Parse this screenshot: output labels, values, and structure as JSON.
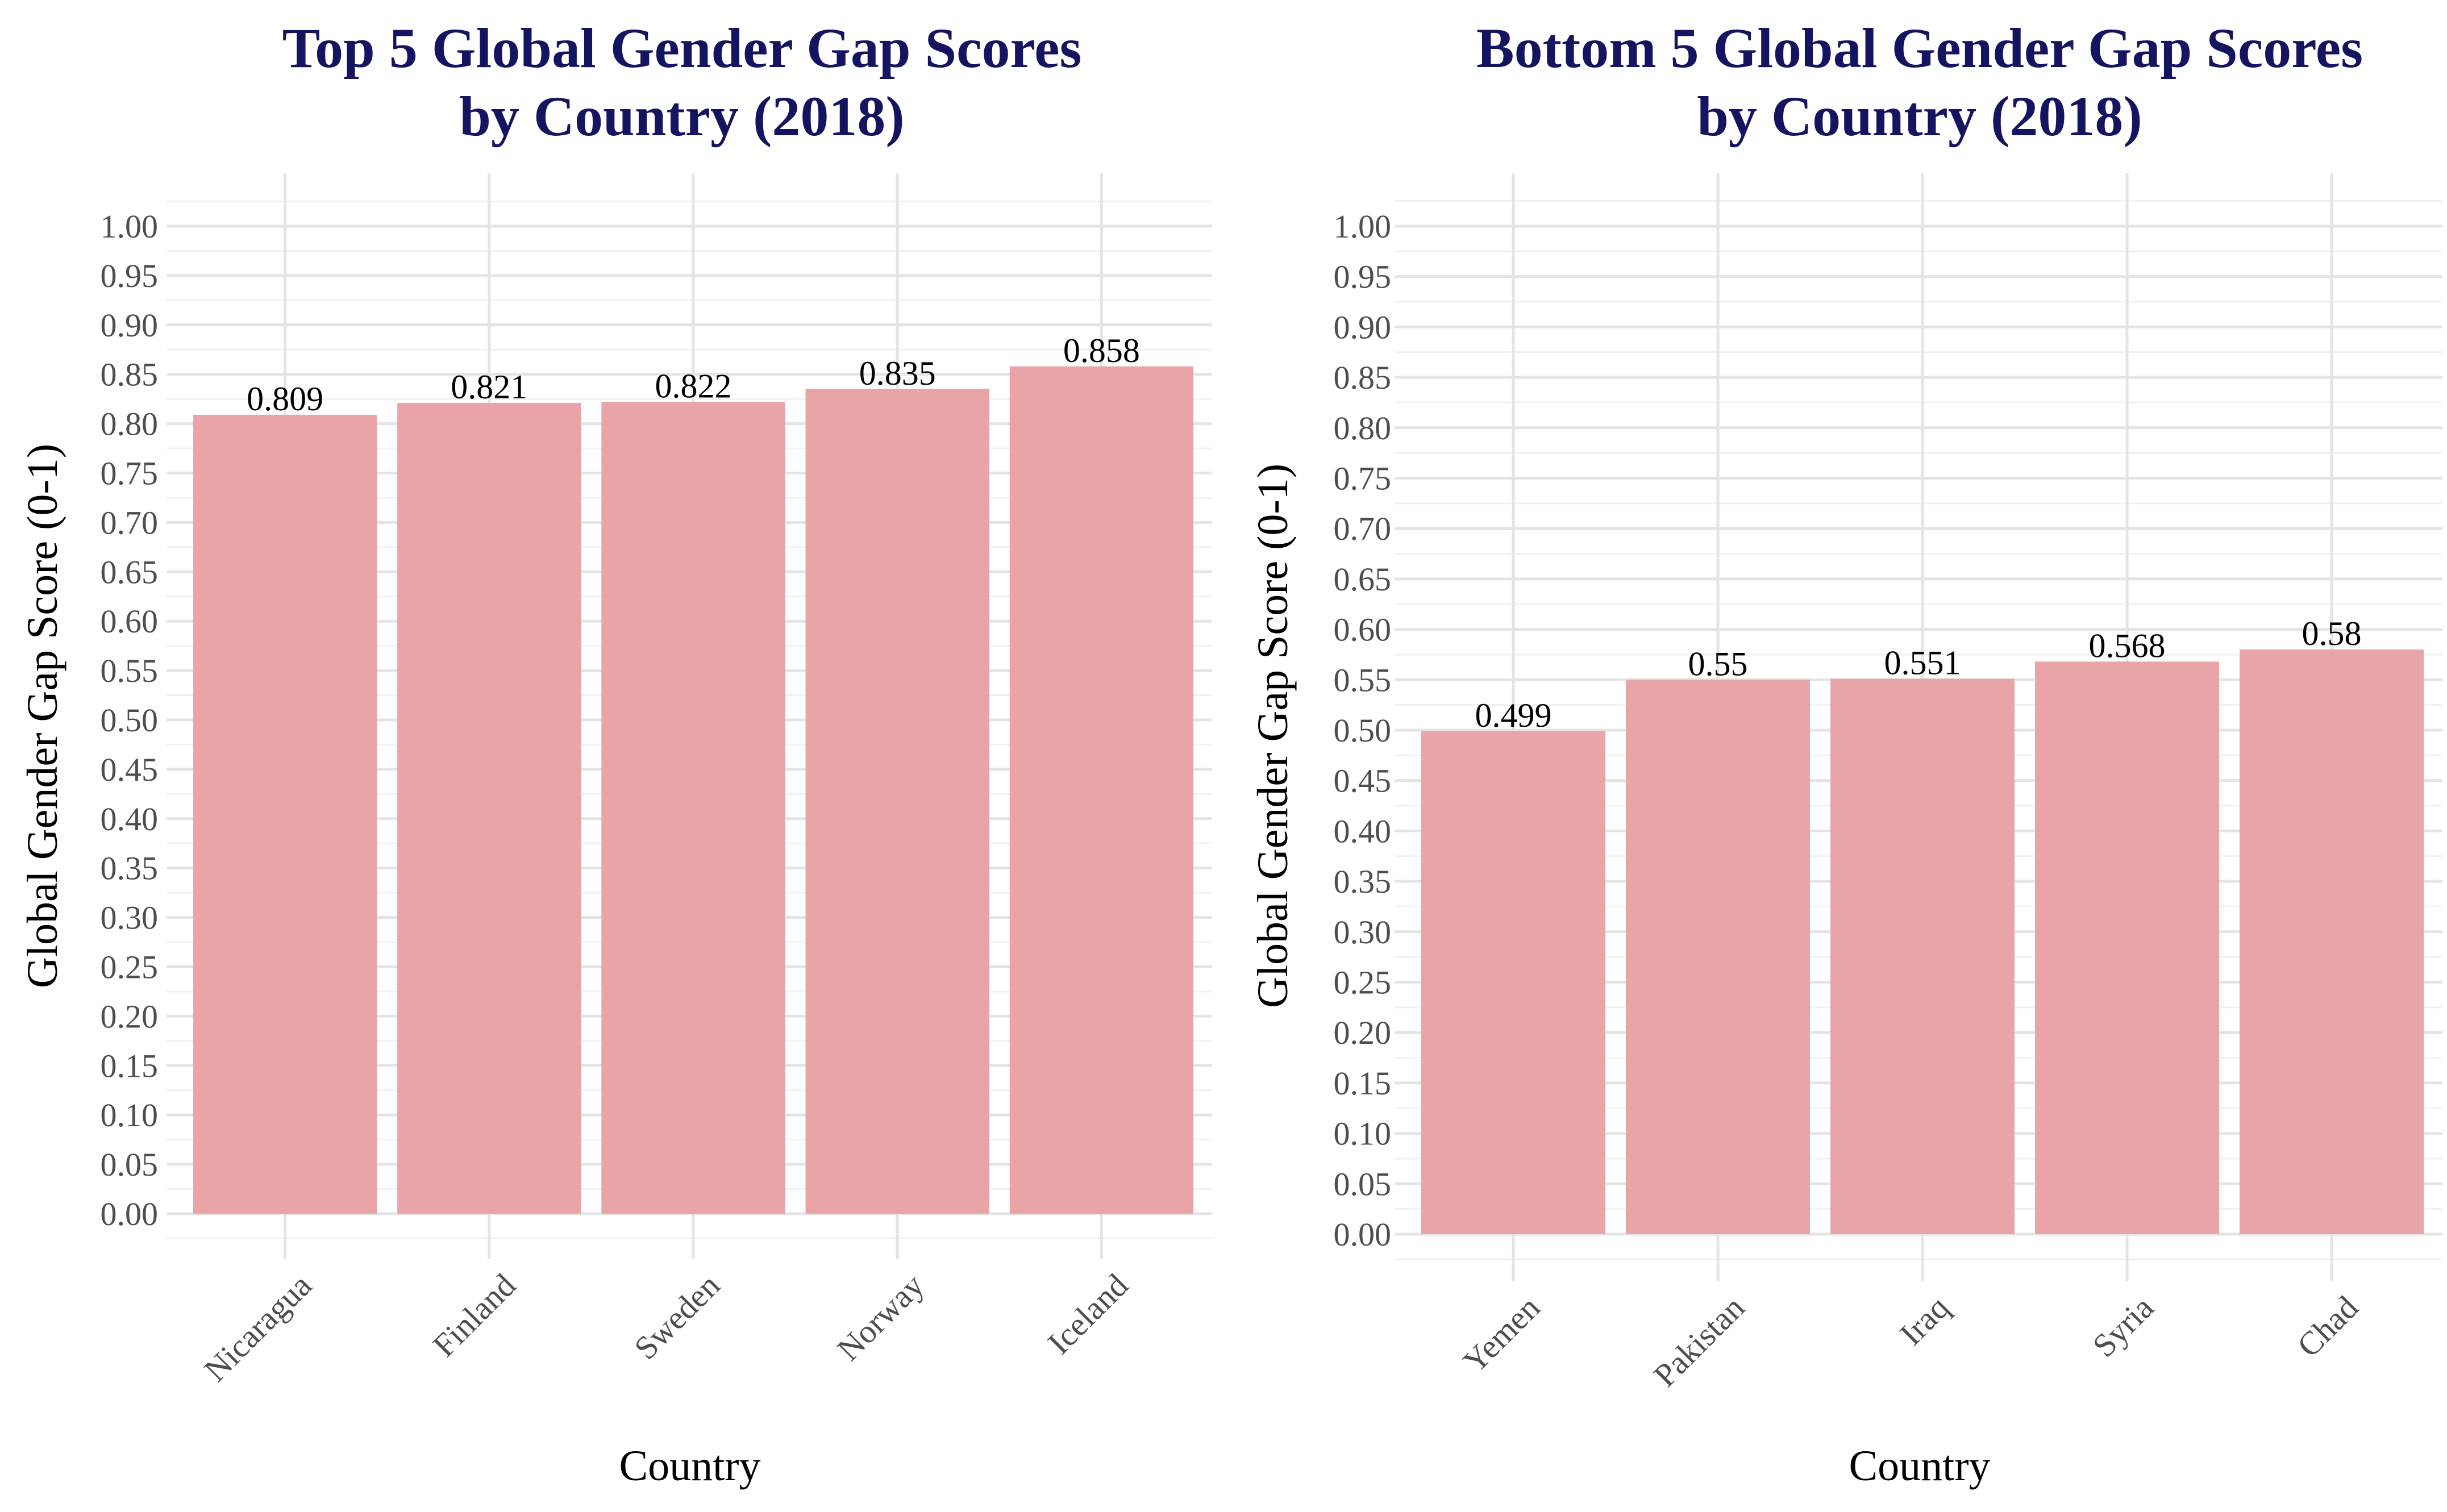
{
  "chart_data": [
    {
      "type": "bar",
      "title": [
        "Top 5 Global Gender Gap Scores",
        "by Country (2018)"
      ],
      "xlabel": "Country",
      "ylabel": "Global Gender Gap Score (0-1)",
      "categories": [
        "Nicaragua",
        "Finland",
        "Sweden",
        "Norway",
        "Iceland"
      ],
      "values": [
        0.809,
        0.821,
        0.822,
        0.835,
        0.858
      ],
      "value_labels": [
        "0.809",
        "0.821",
        "0.822",
        "0.835",
        "0.858"
      ],
      "ylim": [
        0,
        1
      ],
      "yticks": [
        "0.00",
        "0.05",
        "0.10",
        "0.15",
        "0.20",
        "0.25",
        "0.30",
        "0.35",
        "0.40",
        "0.45",
        "0.50",
        "0.55",
        "0.60",
        "0.65",
        "0.70",
        "0.75",
        "0.80",
        "0.85",
        "0.90",
        "0.95",
        "1.00"
      ],
      "grid": true,
      "legend": "none",
      "bar_color": "#e8a4a6"
    },
    {
      "type": "bar",
      "title": [
        "Bottom 5 Global Gender Gap Scores",
        "by Country (2018)"
      ],
      "xlabel": "Country",
      "ylabel": "Global Gender Gap Score (0-1)",
      "categories": [
        "Yemen",
        "Pakistan",
        "Iraq",
        "Syria",
        "Chad"
      ],
      "values": [
        0.499,
        0.55,
        0.551,
        0.568,
        0.58
      ],
      "value_labels": [
        "0.499",
        "0.55",
        "0.551",
        "0.568",
        "0.58"
      ],
      "ylim": [
        0,
        1
      ],
      "yticks": [
        "0.00",
        "0.05",
        "0.10",
        "0.15",
        "0.20",
        "0.25",
        "0.30",
        "0.35",
        "0.40",
        "0.45",
        "0.50",
        "0.55",
        "0.60",
        "0.65",
        "0.70",
        "0.75",
        "0.80",
        "0.85",
        "0.90",
        "0.95",
        "1.00"
      ],
      "grid": true,
      "legend": "none",
      "bar_color": "#e8a4a6"
    }
  ]
}
